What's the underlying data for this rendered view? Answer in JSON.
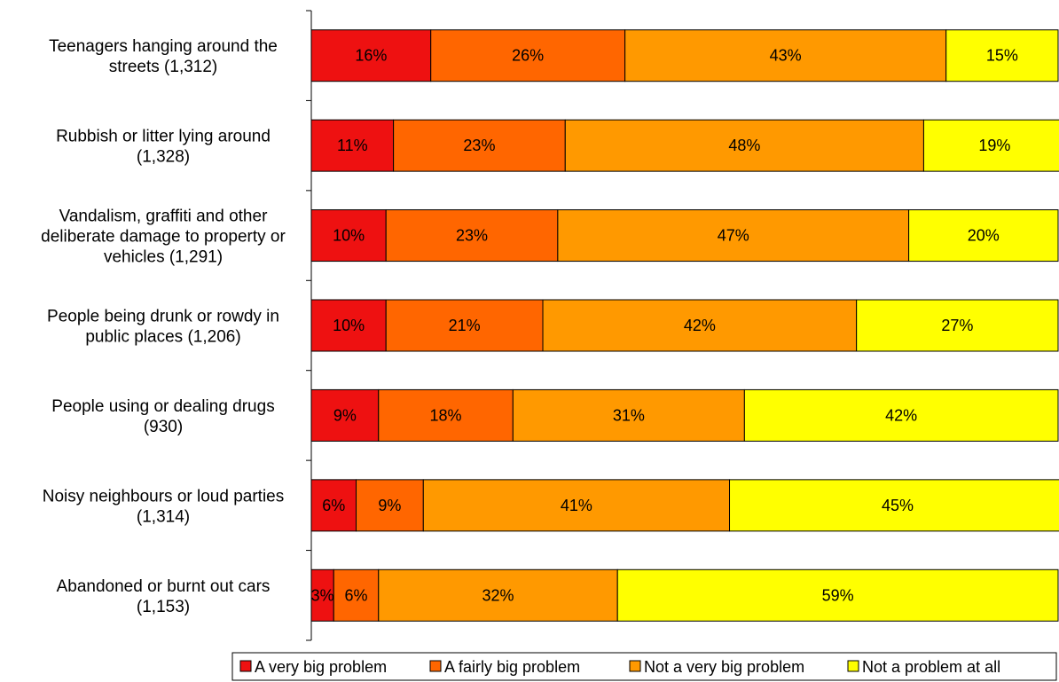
{
  "chart_data": {
    "type": "bar",
    "orientation": "horizontal",
    "stacked": "percent",
    "title": "",
    "xlabel": "",
    "ylabel": "",
    "xlim": [
      0,
      100
    ],
    "grid": false,
    "legend_position": "bottom",
    "categories": [
      [
        "Teenagers hanging around the",
        "streets (1,312)"
      ],
      [
        "Rubbish or litter lying around",
        "(1,328)"
      ],
      [
        "Vandalism, graffiti and other",
        "deliberate damage to property or",
        "vehicles (1,291)"
      ],
      [
        "People being drunk or rowdy in",
        "public places (1,206)"
      ],
      [
        "People using or dealing drugs",
        "(930)"
      ],
      [
        "Noisy neighbours or loud parties",
        "(1,314)"
      ],
      [
        "Abandoned or burnt out cars",
        "(1,153)"
      ]
    ],
    "series": [
      {
        "name": "A very big problem",
        "color": "#ee1111",
        "values": [
          16,
          11,
          10,
          10,
          9,
          6,
          3
        ],
        "labels": [
          "16%",
          "11%",
          "10%",
          "10%",
          "9%",
          "6%",
          "3%"
        ]
      },
      {
        "name": "A fairly big problem",
        "color": "#ff6600",
        "values": [
          26,
          23,
          23,
          21,
          18,
          9,
          6
        ],
        "labels": [
          "26%",
          "23%",
          "23%",
          "21%",
          "18%",
          "9%",
          "6%"
        ]
      },
      {
        "name": "Not a very big problem",
        "color": "#ff9900",
        "values": [
          43,
          48,
          47,
          42,
          31,
          41,
          32
        ],
        "labels": [
          "43%",
          "48%",
          "47%",
          "42%",
          "31%",
          "41%",
          "32%"
        ]
      },
      {
        "name": "Not a problem at all",
        "color": "#ffff00",
        "values": [
          15,
          19,
          20,
          27,
          42,
          45,
          59
        ],
        "labels": [
          "15%",
          "19%",
          "20%",
          "27%",
          "42%",
          "45%",
          "59%"
        ]
      }
    ]
  }
}
